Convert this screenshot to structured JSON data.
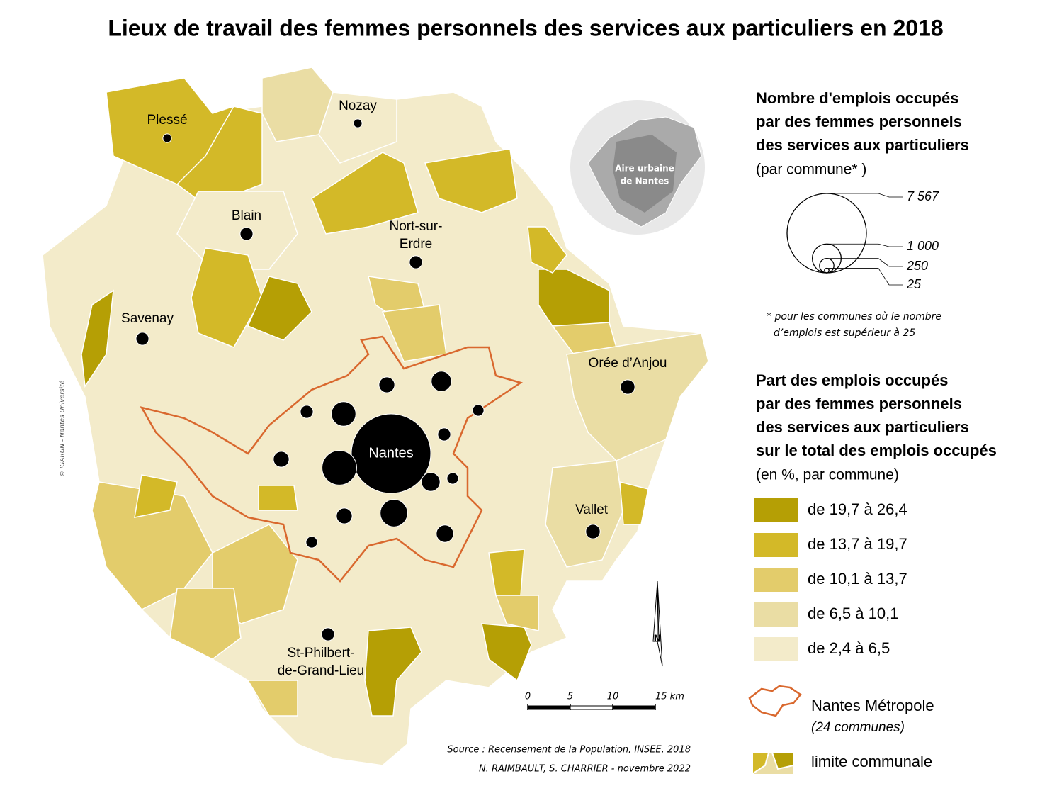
{
  "title": "Lieux de travail des femmes personnels des services aux particuliers en 2018",
  "copyright": "© IGARUN - Nantes Université",
  "map": {
    "communes": [
      {
        "name": [
          "Nantes"
        ],
        "value": 7567
      },
      {
        "name": [
          "Plessé"
        ],
        "value": 90
      },
      {
        "name": [
          "Nozay"
        ],
        "value": 90
      },
      {
        "name": [
          "Blain"
        ],
        "value": 200
      },
      {
        "name": [
          "Nort-sur-",
          "Erdre"
        ],
        "value": 200
      },
      {
        "name": [
          "Savenay"
        ],
        "value": 200
      },
      {
        "name": [
          "Orée d’Anjou"
        ],
        "value": 250
      },
      {
        "name": [
          "Vallet"
        ],
        "value": 250
      },
      {
        "name": [
          "St-Philbert-",
          "de-Grand-Lieu"
        ],
        "value": 200
      },
      {
        "value": 1440
      },
      {
        "value": 720
      },
      {
        "value": 490
      },
      {
        "value": 900
      },
      {
        "value": 360
      },
      {
        "value": 420
      },
      {
        "value": 300
      },
      {
        "value": 300
      },
      {
        "value": 300
      },
      {
        "value": 200
      },
      {
        "value": 160
      },
      {
        "value": 200
      },
      {
        "value": 160
      },
      {
        "value": 160
      }
    ],
    "inset_label": [
      "Aire urbaine",
      "de Nantes"
    ],
    "north": "N",
    "scale_ticks": [
      0,
      5,
      10,
      {
        "value": 15,
        "label": "15 km"
      }
    ]
  },
  "legend_size": {
    "title": [
      "Nombre d'emplois occupés",
      "par des femmes personnels",
      "des services aux particuliers"
    ],
    "subtitle": "(par commune* )",
    "circles": [
      {
        "value": 7567,
        "label": "7 567"
      },
      {
        "value": 1000,
        "label": "1 000"
      },
      250,
      25
    ],
    "note": [
      "* pour les communes où le nombre",
      "d’emplois est supérieur à 25"
    ]
  },
  "legend_share": {
    "title": [
      "Part des emplois occupés",
      "par des femmes personnels",
      "des services aux particuliers",
      "sur le total des emplois occupés"
    ],
    "subtitle": "(en %, par commune)",
    "classes": [
      {
        "label": "de 19,7 à 26,4",
        "color": "#b59f05"
      },
      {
        "label": "de 13,7 à 19,7",
        "color": "#d3b928"
      },
      {
        "label": "de 10,1 à 13,7",
        "color": "#e3cc6b"
      },
      {
        "label": "de 6,5 à 10,1",
        "color": "#eadda4"
      },
      {
        "label": "de 2,4 à 6,5",
        "color": "#f3ebca"
      }
    ]
  },
  "legend_lines": {
    "metropole": "Nantes Métropole",
    "metropole_note": "(24 communes)",
    "limit": "limite communale"
  },
  "source": "Source : Recensement de la Population,  INSEE, 2018",
  "credit": "N. RAIMBAULT, S. CHARRIER - novembre 2022"
}
